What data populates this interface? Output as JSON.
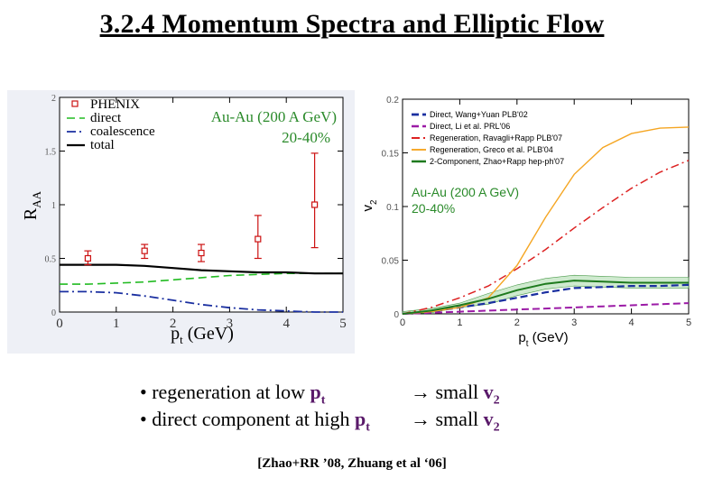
{
  "title": "3.2.4  Momentum Spectra and Elliptic Flow",
  "chart_data": [
    {
      "type": "line",
      "xlabel": "p",
      "xlabel_sub": "t",
      "xlabel_unit": "(GeV)",
      "ylabel": "R",
      "ylabel_sub": "AA",
      "xlim": [
        0,
        5
      ],
      "ylim": [
        0,
        2
      ],
      "xticks": [
        0,
        1,
        2,
        3,
        4,
        5
      ],
      "yticks": [
        0,
        0.5,
        1,
        1.5,
        2
      ],
      "ytick_labels": [
        "0",
        "0.5",
        "1",
        "1.5",
        "2"
      ],
      "annotation_system": "Au-Au (200 A GeV)",
      "annotation_centrality": "20-40%",
      "legend": [
        "PHENIX",
        "direct",
        "coalescence",
        "total"
      ],
      "phenix_points": [
        {
          "x": 0.5,
          "y": 0.5,
          "err_lo": 0.44,
          "err_hi": 0.57
        },
        {
          "x": 1.5,
          "y": 0.57,
          "err_lo": 0.5,
          "err_hi": 0.63
        },
        {
          "x": 2.5,
          "y": 0.55,
          "err_lo": 0.47,
          "err_hi": 0.63
        },
        {
          "x": 3.5,
          "y": 0.68,
          "err_lo": 0.5,
          "err_hi": 0.9
        },
        {
          "x": 4.5,
          "y": 1.0,
          "err_lo": 0.6,
          "err_hi": 1.48
        }
      ],
      "series": [
        {
          "name": "direct",
          "color": "#22bb22",
          "x": [
            0,
            0.5,
            1,
            1.5,
            2,
            2.5,
            3,
            3.5,
            4,
            4.5,
            5
          ],
          "values": [
            0.26,
            0.26,
            0.27,
            0.28,
            0.3,
            0.32,
            0.34,
            0.35,
            0.36,
            0.36,
            0.36
          ]
        },
        {
          "name": "coalescence",
          "color": "#1a2fa0",
          "x": [
            0,
            0.5,
            1,
            1.5,
            2,
            2.5,
            3,
            3.5,
            4,
            4.5,
            5
          ],
          "values": [
            0.19,
            0.19,
            0.18,
            0.15,
            0.11,
            0.07,
            0.04,
            0.02,
            0.01,
            0.0,
            0.0
          ]
        },
        {
          "name": "total",
          "color": "#000000",
          "x": [
            0,
            0.5,
            1,
            1.5,
            2,
            2.5,
            3,
            3.5,
            4,
            4.5,
            5
          ],
          "values": [
            0.44,
            0.44,
            0.44,
            0.43,
            0.41,
            0.39,
            0.38,
            0.37,
            0.37,
            0.36,
            0.36
          ]
        }
      ]
    },
    {
      "type": "line",
      "xlabel": "p",
      "xlabel_sub": "t",
      "xlabel_unit": "(GeV)",
      "ylabel": "v",
      "ylabel_sub": "2",
      "xlim": [
        0,
        5
      ],
      "ylim": [
        0,
        0.2
      ],
      "xticks": [
        0,
        1,
        2,
        3,
        4,
        5
      ],
      "yticks": [
        0,
        0.05,
        0.1,
        0.15,
        0.2
      ],
      "ytick_labels": [
        "0",
        "0.05",
        "0.1",
        "0.15",
        "0.2"
      ],
      "annotation_system": "Au-Au (200 A GeV)",
      "annotation_centrality": "20-40%",
      "series": [
        {
          "name": "Direct, Wang+Yuan PLB'02",
          "color": "#1a2fa0",
          "x": [
            0,
            0.5,
            1,
            1.5,
            2,
            2.5,
            3,
            3.5,
            4,
            4.5,
            5
          ],
          "values": [
            0,
            0.002,
            0.006,
            0.01,
            0.015,
            0.02,
            0.024,
            0.025,
            0.026,
            0.026,
            0.027
          ]
        },
        {
          "name": "Direct, Li et al. PRL'06",
          "color": "#9b1aa6",
          "x": [
            0,
            0.5,
            1,
            1.5,
            2,
            2.5,
            3,
            3.5,
            4,
            4.5,
            5
          ],
          "values": [
            0,
            0.001,
            0.002,
            0.003,
            0.004,
            0.005,
            0.006,
            0.007,
            0.008,
            0.009,
            0.01
          ]
        },
        {
          "name": "Regeneration, Ravagli+Rapp PLB'07",
          "color": "#dd2222",
          "x": [
            0,
            0.5,
            1,
            1.5,
            2,
            2.5,
            3,
            3.5,
            4,
            4.5,
            5
          ],
          "values": [
            0,
            0.006,
            0.015,
            0.026,
            0.042,
            0.06,
            0.08,
            0.099,
            0.117,
            0.132,
            0.143
          ]
        },
        {
          "name": "Regeneration, Greco et al. PLB'04",
          "color": "#f5a623",
          "x": [
            0,
            0.5,
            1,
            1.5,
            2,
            2.5,
            3,
            3.5,
            4,
            4.5,
            5
          ],
          "values": [
            0,
            0.002,
            0.006,
            0.015,
            0.045,
            0.09,
            0.13,
            0.155,
            0.168,
            0.173,
            0.174
          ]
        },
        {
          "name": "2-Component, Zhao+Rapp hep-ph'07",
          "color": "#1e7a1e",
          "x": [
            0,
            0.5,
            1,
            1.5,
            2,
            2.5,
            3,
            3.5,
            4,
            4.5,
            5
          ],
          "values": [
            0,
            0.003,
            0.008,
            0.014,
            0.022,
            0.028,
            0.031,
            0.03,
            0.029,
            0.029,
            0.029
          ]
        }
      ]
    }
  ],
  "bullets": [
    {
      "text": "• regeneration at low ",
      "kw": "p",
      "kw_sub": "t",
      "arrow": "→  small ",
      "res": "v",
      "res_sub": "2"
    },
    {
      "text": "• direct component at high ",
      "kw": "p",
      "kw_sub": "t",
      "arrow": "→  small ",
      "res": "v",
      "res_sub": "2"
    }
  ],
  "citation": "[Zhao+RR ’08, Zhuang et al ‘06]"
}
